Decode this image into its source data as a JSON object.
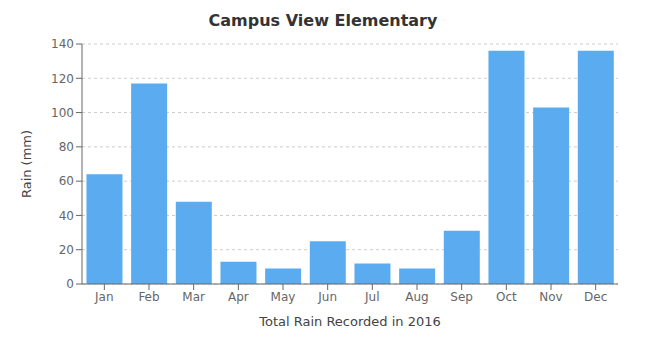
{
  "chart_data": {
    "type": "bar",
    "title": "Campus View Elementary",
    "xlabel": "Total Rain Recorded in 2016",
    "ylabel": "Rain (mm)",
    "categories": [
      "Jan",
      "Feb",
      "Mar",
      "Apr",
      "May",
      "Jun",
      "Jul",
      "Aug",
      "Sep",
      "Oct",
      "Nov",
      "Dec"
    ],
    "values": [
      64,
      117,
      48,
      13,
      9,
      25,
      12,
      9,
      31,
      136,
      103,
      136
    ],
    "color": "#5aabf0",
    "ylim": [
      0,
      140
    ],
    "yticks": [
      0,
      20,
      40,
      60,
      80,
      100,
      120,
      140
    ],
    "grid": true
  }
}
